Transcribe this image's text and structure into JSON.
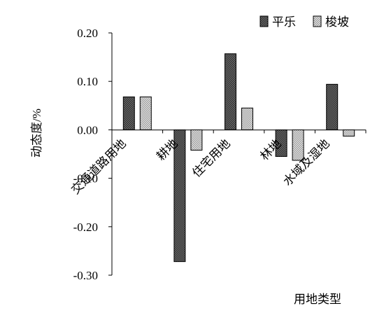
{
  "chart_data": {
    "type": "bar",
    "categories": [
      "交通道路用地",
      "耕地",
      "住宅用地",
      "林地",
      "水域及湿地"
    ],
    "series": [
      {
        "name": "平乐",
        "values": [
          0.068,
          -0.272,
          0.157,
          -0.055,
          0.094
        ],
        "color": "#4a4a4a",
        "pattern": "dark-checker"
      },
      {
        "name": "梭坡",
        "values": [
          0.068,
          -0.042,
          0.045,
          -0.063,
          -0.013
        ],
        "color": "#cfcfcf",
        "pattern": "light-checker"
      }
    ],
    "title": "",
    "xlabel": "用地类型",
    "ylabel": "动态度/%",
    "ylim": [
      -0.3,
      0.2
    ],
    "yticks": [
      "-0.30",
      "-0.20",
      "-0.10",
      "0.00",
      "0.10",
      "0.20"
    ],
    "grid": false,
    "legend": "top-right"
  }
}
